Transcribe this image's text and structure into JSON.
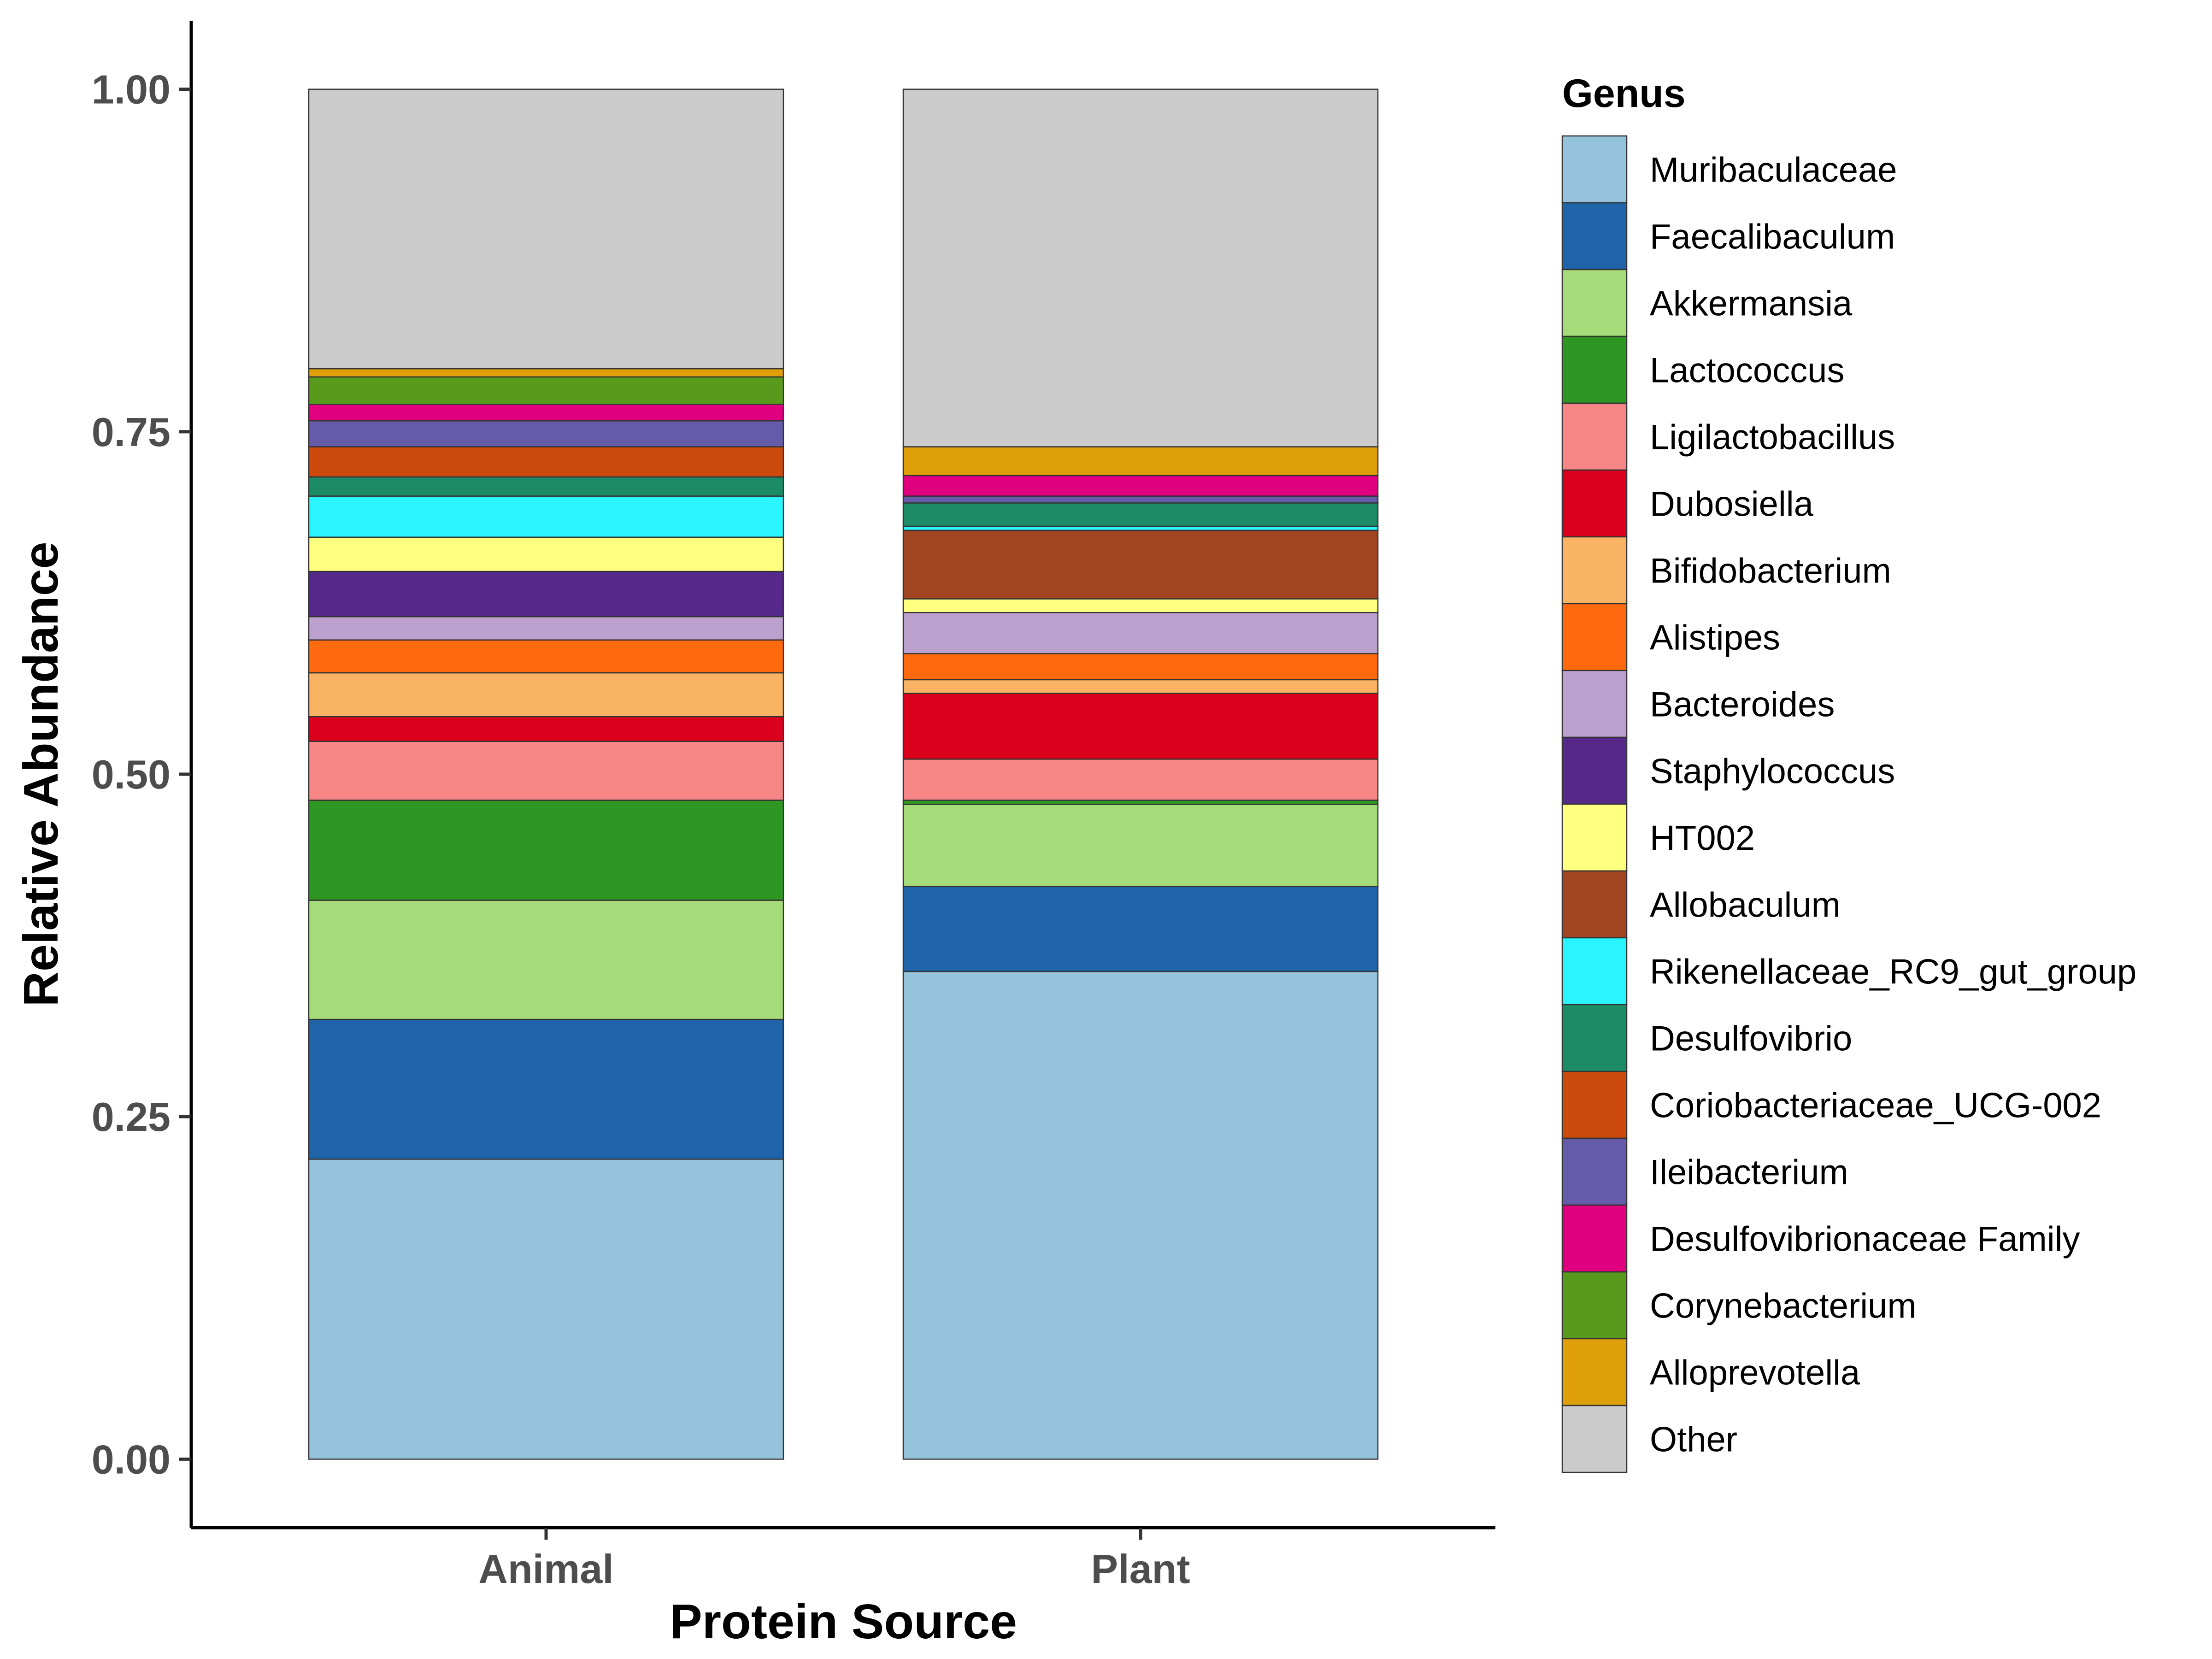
{
  "chart_data": {
    "type": "bar",
    "stacked": true,
    "xlabel": "Protein Source",
    "ylabel": "Relative Abundance",
    "ylim": [
      -0.05,
      1.05
    ],
    "yticks": [
      "0.00",
      "0.25",
      "0.50",
      "0.75",
      "1.00"
    ],
    "categories": [
      "Animal",
      "Plant"
    ],
    "legend": {
      "title": "Genus",
      "position": "right"
    },
    "grid": false,
    "series": [
      {
        "name": "Muribaculaceae",
        "color": "#96C3DC",
        "values": [
          0.219,
          0.356
        ]
      },
      {
        "name": "Faecalibaculum",
        "color": "#1F63A8",
        "values": [
          0.102,
          0.062
        ]
      },
      {
        "name": "Akkermansia",
        "color": "#A6DB7A",
        "values": [
          0.087,
          0.06
        ]
      },
      {
        "name": "Lactococcus",
        "color": "#2E9622",
        "values": [
          0.073,
          0.003
        ]
      },
      {
        "name": "Ligilactobacillus",
        "color": "#F78787",
        "values": [
          0.043,
          0.03
        ]
      },
      {
        "name": "Dubosiella",
        "color": "#DB001C",
        "values": [
          0.018,
          0.048
        ]
      },
      {
        "name": "Bifidobacterium",
        "color": "#FAB362",
        "values": [
          0.032,
          0.01
        ]
      },
      {
        "name": "Alistipes",
        "color": "#FF6A0E",
        "values": [
          0.024,
          0.019
        ]
      },
      {
        "name": "Bacteroides",
        "color": "#BCA0CE",
        "values": [
          0.017,
          0.03
        ]
      },
      {
        "name": "Staphylococcus",
        "color": "#55288A",
        "values": [
          0.033,
          0.0
        ]
      },
      {
        "name": "HT002",
        "color": "#FFFF80",
        "values": [
          0.025,
          0.01
        ]
      },
      {
        "name": "Allobaculum",
        "color": "#A24523",
        "values": [
          0.0,
          0.05
        ]
      },
      {
        "name": "Rikenellaceae_RC9_gut_group",
        "color": "#2AF5FF",
        "values": [
          0.03,
          0.003
        ]
      },
      {
        "name": "Desulfovibrio",
        "color": "#1C8C66",
        "values": [
          0.014,
          0.017
        ]
      },
      {
        "name": "Coriobacteriaceae_UCG-002",
        "color": "#CC4A0C",
        "values": [
          0.022,
          0.0
        ]
      },
      {
        "name": "Ileibacterium",
        "color": "#655BA8",
        "values": [
          0.019,
          0.005
        ]
      },
      {
        "name": "Desulfovibrionaceae Family",
        "color": "#E0007F",
        "values": [
          0.012,
          0.015
        ]
      },
      {
        "name": "Corynebacterium",
        "color": "#589A1C",
        "values": [
          0.02,
          0.0
        ]
      },
      {
        "name": "Alloprevotella",
        "color": "#DF9F09",
        "values": [
          0.006,
          0.021
        ]
      },
      {
        "name": "Other",
        "color": "#CBCBCB",
        "values": [
          0.204,
          0.261
        ]
      }
    ]
  }
}
